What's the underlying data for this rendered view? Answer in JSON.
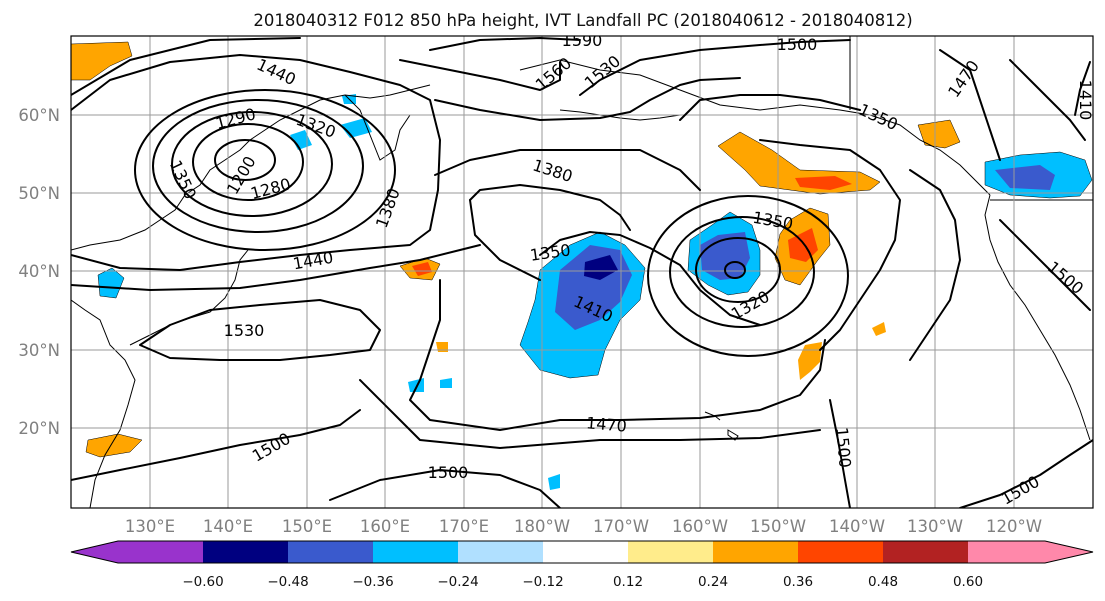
{
  "title": "2018040312 F012 850 hPa height, IVT Landfall PC (2018040612 - 2018040812)",
  "lat_ticks": [
    "60°N",
    "50°N",
    "40°N",
    "30°N",
    "20°N"
  ],
  "lon_ticks": [
    "130°E",
    "140°E",
    "150°E",
    "160°E",
    "170°E",
    "180°W",
    "170°W",
    "160°W",
    "150°W",
    "140°W",
    "130°W",
    "120°W"
  ],
  "colorbar": {
    "ticks": [
      "−0.60",
      "−0.48",
      "−0.36",
      "−0.24",
      "−0.12",
      "0.12",
      "0.24",
      "0.36",
      "0.48",
      "0.60"
    ],
    "colors": [
      "#9933cc",
      "#000080",
      "#3a5acd",
      "#00bfff",
      "#b0e0ff",
      "#ffffff",
      "#ffec8b",
      "#ffa500",
      "#ff4500",
      "#b22222",
      "#ff88aa"
    ]
  },
  "contour_labels": [
    "1590",
    "1500",
    "1470",
    "1410",
    "1440",
    "1560",
    "1530",
    "1290",
    "1320",
    "1350",
    "1200",
    "1280",
    "1380",
    "1380",
    "1440",
    "1350",
    "1410",
    "1350",
    "1320",
    "1530",
    "1470",
    "1500",
    "1500",
    "1500",
    "1500",
    "1350",
    "1500"
  ]
}
